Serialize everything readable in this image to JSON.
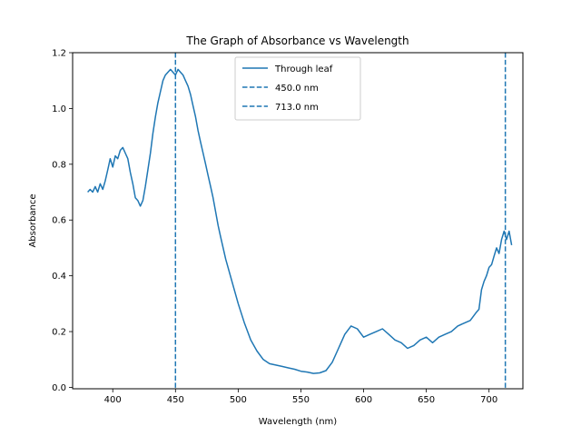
{
  "chart_data": {
    "type": "line",
    "title": "The Graph of Absorbance vs Wavelength",
    "xlabel": "Wavelength (nm)",
    "ylabel": "Absorbance",
    "xlim": [
      368,
      727
    ],
    "ylim": [
      -0.005,
      1.2
    ],
    "xticks": [
      400,
      450,
      500,
      550,
      600,
      650,
      700
    ],
    "yticks": [
      0.0,
      0.2,
      0.4,
      0.6,
      0.8,
      1.0,
      1.2
    ],
    "ytick_labels": [
      "0.0",
      "0.2",
      "0.4",
      "0.6",
      "0.8",
      "1.0",
      "1.2"
    ],
    "grid": false,
    "legend_position": "top-center",
    "series": [
      {
        "name": "Through leaf",
        "style": "solid",
        "color": "#1f77b4",
        "x": [
          380,
          382,
          384,
          386,
          388,
          390,
          392,
          394,
          396,
          398,
          400,
          402,
          404,
          406,
          408,
          410,
          412,
          414,
          416,
          418,
          420,
          422,
          424,
          426,
          428,
          430,
          432,
          434,
          436,
          438,
          440,
          442,
          444,
          446,
          448,
          450,
          452,
          454,
          456,
          458,
          460,
          462,
          464,
          466,
          468,
          470,
          472,
          474,
          476,
          478,
          480,
          482,
          484,
          486,
          488,
          490,
          495,
          500,
          505,
          510,
          515,
          520,
          525,
          530,
          535,
          540,
          545,
          550,
          555,
          560,
          565,
          570,
          575,
          580,
          585,
          590,
          595,
          600,
          605,
          610,
          615,
          620,
          625,
          630,
          635,
          640,
          645,
          650,
          655,
          660,
          665,
          670,
          675,
          680,
          685,
          690,
          692,
          694,
          696,
          698,
          700,
          702,
          704,
          706,
          708,
          710,
          712,
          714,
          716,
          718
        ],
        "values": [
          0.7,
          0.71,
          0.7,
          0.72,
          0.7,
          0.73,
          0.71,
          0.74,
          0.78,
          0.82,
          0.79,
          0.83,
          0.82,
          0.85,
          0.86,
          0.84,
          0.82,
          0.77,
          0.73,
          0.68,
          0.67,
          0.65,
          0.67,
          0.72,
          0.78,
          0.84,
          0.91,
          0.97,
          1.02,
          1.06,
          1.1,
          1.12,
          1.13,
          1.14,
          1.13,
          1.12,
          1.14,
          1.13,
          1.12,
          1.1,
          1.08,
          1.05,
          1.01,
          0.97,
          0.92,
          0.88,
          0.84,
          0.8,
          0.76,
          0.72,
          0.68,
          0.63,
          0.58,
          0.54,
          0.5,
          0.46,
          0.38,
          0.3,
          0.23,
          0.17,
          0.13,
          0.1,
          0.085,
          0.08,
          0.075,
          0.07,
          0.065,
          0.058,
          0.055,
          0.05,
          0.052,
          0.06,
          0.09,
          0.14,
          0.19,
          0.22,
          0.21,
          0.18,
          0.19,
          0.2,
          0.21,
          0.19,
          0.17,
          0.16,
          0.14,
          0.15,
          0.17,
          0.18,
          0.16,
          0.18,
          0.19,
          0.2,
          0.22,
          0.23,
          0.24,
          0.27,
          0.28,
          0.35,
          0.38,
          0.4,
          0.43,
          0.44,
          0.47,
          0.5,
          0.48,
          0.53,
          0.56,
          0.53,
          0.56,
          0.51
        ]
      },
      {
        "name": "450.0 nm",
        "style": "dashed",
        "color": "#1f77b4",
        "vline_x": 450.0
      },
      {
        "name": "713.0 nm",
        "style": "dashed",
        "color": "#1f77b4",
        "vline_x": 713.0
      }
    ]
  }
}
